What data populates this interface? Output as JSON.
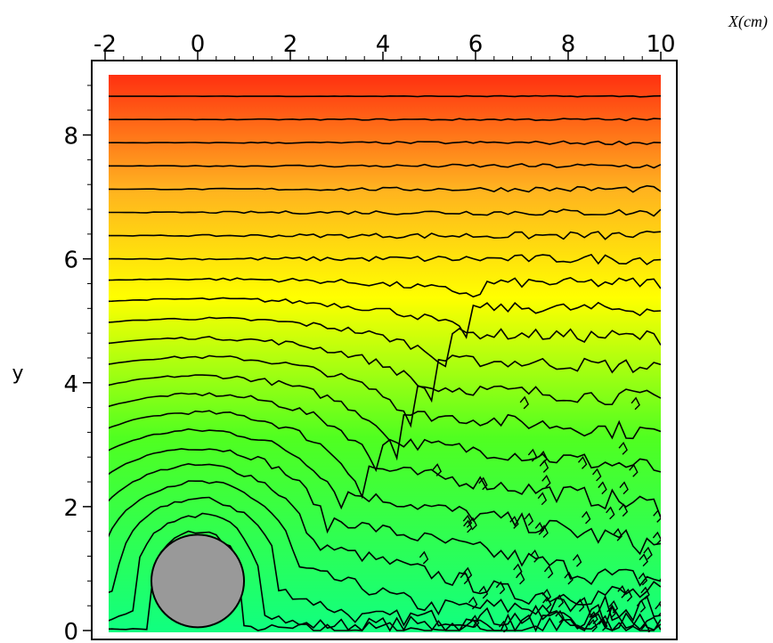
{
  "chart_data": {
    "type": "heatmap",
    "style": "filled contour plot with black contour lines",
    "x_unit_label": "X(cm)",
    "ylabel": "y",
    "xlim": [
      -2,
      10
    ],
    "ylim": [
      0,
      9
    ],
    "x_ticks": [
      "-2",
      "0",
      "2",
      "4",
      "6",
      "8",
      "10"
    ],
    "y_ticks": [
      "0",
      "2",
      "4",
      "6",
      "8"
    ],
    "colormap": {
      "low": "#10ff80",
      "mid": "#ffff00",
      "high": "#ff3010"
    },
    "contour_levels": 24,
    "obstacle": {
      "shape": "circle",
      "center": [
        0,
        0.8
      ],
      "radius": 1.0,
      "color": "#999999"
    }
  }
}
